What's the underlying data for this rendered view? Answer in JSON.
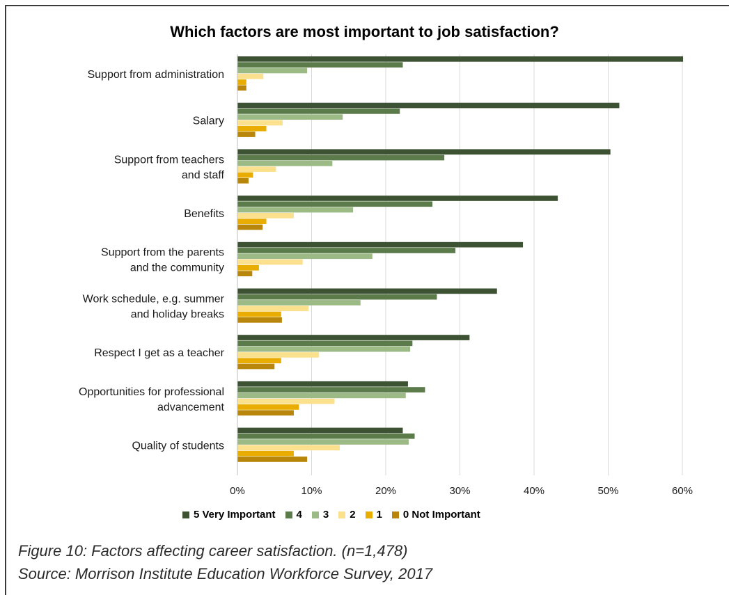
{
  "chart_data": {
    "type": "bar",
    "orientation": "horizontal",
    "title": "Which factors are most important to job satisfaction?",
    "categories": [
      "Support from administration",
      "Salary",
      "Support from teachers and staff",
      "Benefits",
      "Support from the parents and the community",
      "Work schedule, e.g. summer and holiday breaks",
      "Respect I get as a teacher",
      "Opportunities for professional advancement",
      "Quality of students"
    ],
    "category_lines": [
      [
        "Support from administration"
      ],
      [
        "Salary"
      ],
      [
        "Support from teachers",
        "and staff"
      ],
      [
        "Benefits"
      ],
      [
        "Support from the parents",
        "and the community"
      ],
      [
        "Work schedule, e.g. summer",
        "and holiday breaks"
      ],
      [
        "Respect I get as a teacher"
      ],
      [
        "Opportunities for professional",
        "advancement"
      ],
      [
        "Quality of students"
      ]
    ],
    "series": [
      {
        "name": "5 Very Important",
        "color": "#3d5232",
        "values": [
          60.1,
          51.5,
          50.3,
          43.2,
          38.5,
          35.0,
          31.3,
          23.0,
          22.3
        ]
      },
      {
        "name": "4",
        "color": "#5c7b4a",
        "values": [
          22.3,
          21.9,
          27.9,
          26.3,
          29.4,
          26.9,
          23.6,
          25.3,
          23.9
        ]
      },
      {
        "name": "3",
        "color": "#9bba85",
        "values": [
          9.4,
          14.2,
          12.8,
          15.6,
          18.2,
          16.6,
          23.3,
          22.7,
          23.1
        ]
      },
      {
        "name": "2",
        "color": "#fbe08e",
        "values": [
          3.5,
          6.1,
          5.2,
          7.6,
          8.8,
          9.6,
          11.0,
          13.1,
          13.8
        ]
      },
      {
        "name": "1",
        "color": "#e8ad00",
        "values": [
          1.2,
          3.9,
          2.1,
          3.9,
          2.9,
          5.9,
          5.9,
          8.3,
          7.6
        ]
      },
      {
        "name": "0 Not Important",
        "color": "#b8860b",
        "values": [
          1.2,
          2.4,
          1.5,
          3.4,
          2.0,
          6.0,
          5.0,
          7.6,
          9.4
        ]
      }
    ],
    "xlim": [
      0,
      60
    ],
    "xticks": [
      "0%",
      "10%",
      "20%",
      "30%",
      "40%",
      "50%",
      "60%"
    ],
    "grid": true,
    "legend_position": "bottom"
  },
  "caption": {
    "line1": "Figure 10: Factors affecting career satisfaction. (n=1,478)",
    "line2": "Source: Morrison Institute Education Workforce Survey, 2017"
  }
}
